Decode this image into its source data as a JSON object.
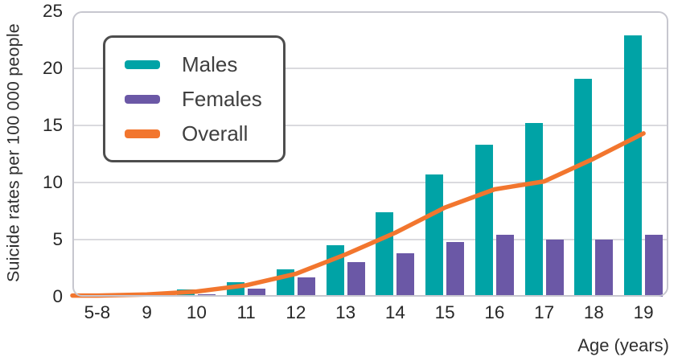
{
  "axes": {
    "y_title": "Suicide rates per 100 000 people",
    "x_title": "Age (years)"
  },
  "legend": {
    "items": [
      {
        "label": "Males"
      },
      {
        "label": "Females"
      },
      {
        "label": "Overall"
      }
    ]
  },
  "colors": {
    "males": "#00a3a6",
    "females": "#6b58a6",
    "overall": "#f2762e",
    "grid": "#dadade",
    "frame": "#c7c7cf",
    "text": "#2f2f2f",
    "legend_border": "#4d4d4d"
  },
  "chart_data": {
    "type": "bar",
    "subtype": "grouped-bars-with-line-overlay",
    "title": "",
    "categories": [
      "5-8",
      "9",
      "10",
      "11",
      "12",
      "13",
      "14",
      "15",
      "16",
      "17",
      "18",
      "19"
    ],
    "xlabel": "Age (years)",
    "ylabel": "Suicide rates per 100 000 people",
    "ylim": [
      0,
      25
    ],
    "yticks": [
      0,
      5,
      10,
      15,
      20,
      25
    ],
    "grid": "horizontal",
    "legend_position": "upper-left",
    "series": [
      {
        "name": "Males",
        "type": "bar",
        "color": "#00a3a6",
        "values": [
          0.1,
          0.3,
          0.6,
          1.3,
          2.4,
          4.5,
          7.4,
          10.7,
          13.3,
          15.2,
          19.1,
          22.9
        ]
      },
      {
        "name": "Females",
        "type": "bar",
        "color": "#6b58a6",
        "values": [
          0.05,
          0.1,
          0.2,
          0.7,
          1.7,
          3.0,
          3.8,
          4.8,
          5.4,
          5.0,
          5.0,
          5.4
        ]
      },
      {
        "name": "Overall",
        "type": "line",
        "color": "#f2762e",
        "values": [
          0.1,
          0.2,
          0.45,
          1.0,
          2.0,
          3.7,
          5.6,
          7.8,
          9.4,
          10.1,
          12.1,
          14.3
        ]
      }
    ]
  }
}
